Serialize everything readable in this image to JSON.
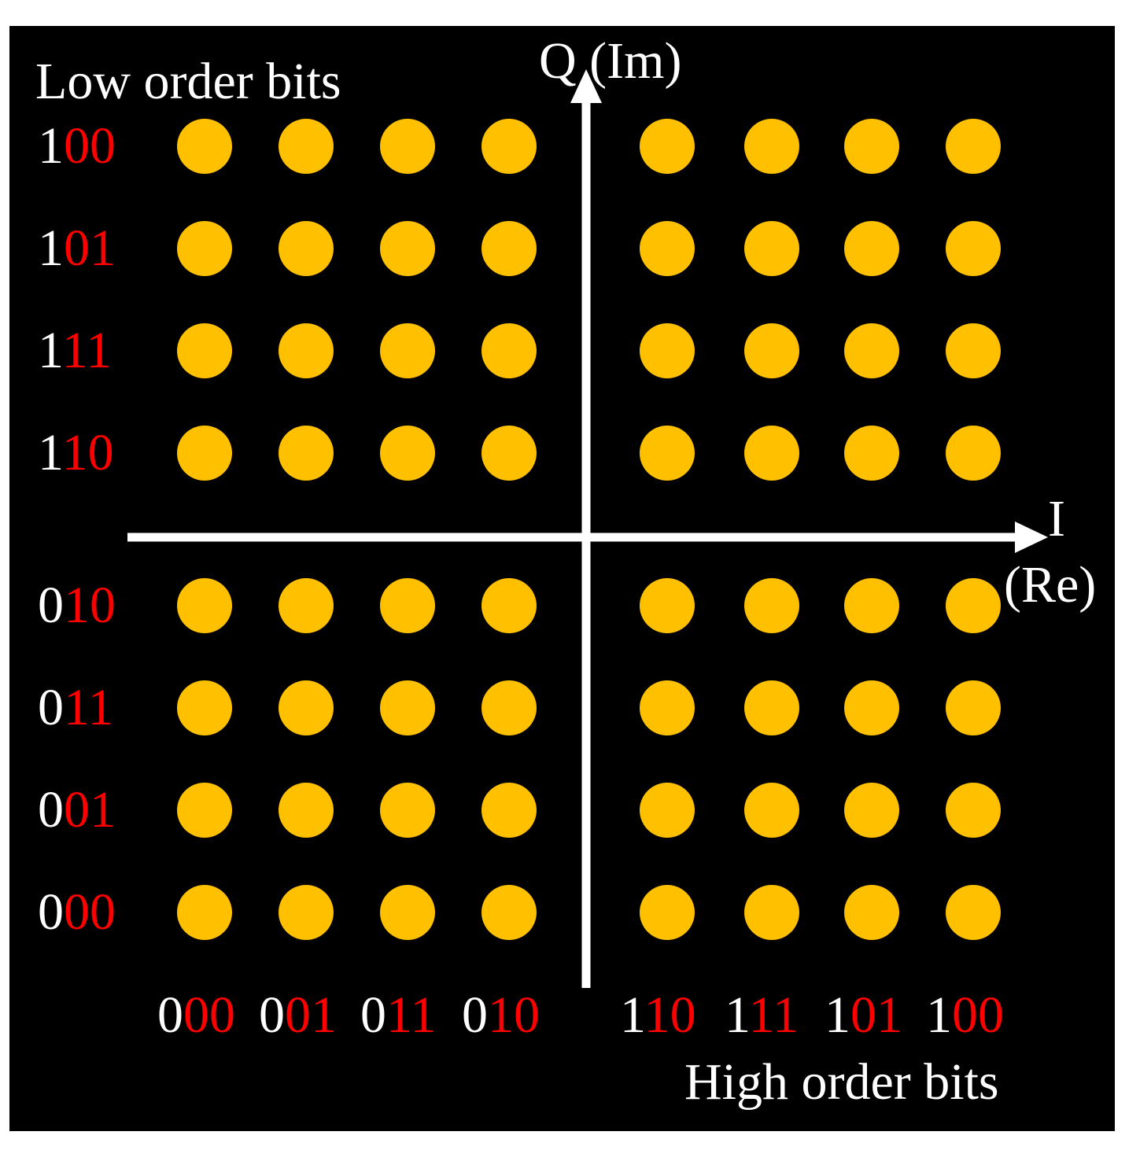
{
  "colors": {
    "background": "#000000",
    "point": "#ffc000",
    "axis": "#ffffff",
    "text": "#ffffff",
    "bits_highlight": "#ff0000"
  },
  "labels": {
    "q_axis": "Q (Im)",
    "i_axis_top": "I",
    "i_axis_bottom": "(Re)",
    "low_order": "Low order bits",
    "high_order": "High order bits"
  },
  "row_codes": [
    {
      "msb": "1",
      "lsb": "00"
    },
    {
      "msb": "1",
      "lsb": "01"
    },
    {
      "msb": "1",
      "lsb": "11"
    },
    {
      "msb": "1",
      "lsb": "10"
    },
    {
      "msb": "0",
      "lsb": "10"
    },
    {
      "msb": "0",
      "lsb": "11"
    },
    {
      "msb": "0",
      "lsb": "01"
    },
    {
      "msb": "0",
      "lsb": "00"
    }
  ],
  "col_codes": [
    {
      "msb": "0",
      "lsb": "00"
    },
    {
      "msb": "0",
      "lsb": "01"
    },
    {
      "msb": "0",
      "lsb": "11"
    },
    {
      "msb": "0",
      "lsb": "10"
    },
    {
      "msb": "1",
      "lsb": "10"
    },
    {
      "msb": "1",
      "lsb": "11"
    },
    {
      "msb": "1",
      "lsb": "01"
    },
    {
      "msb": "1",
      "lsb": "00"
    }
  ],
  "constellation": {
    "columns": 8,
    "rows": 8,
    "points": 64
  }
}
